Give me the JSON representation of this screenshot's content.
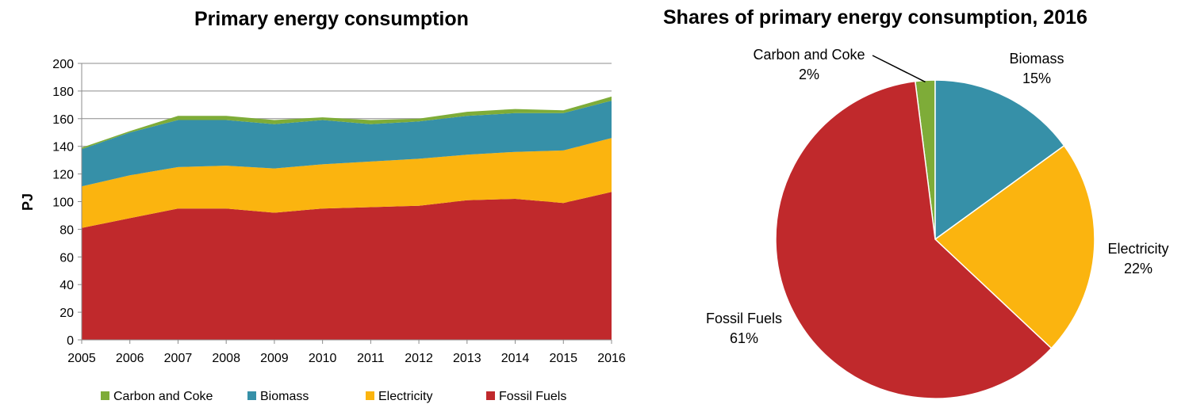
{
  "chart_data": [
    {
      "type": "area",
      "stacked": true,
      "title": "Primary energy consumption",
      "xlabel": "",
      "ylabel": "PJ",
      "ylim": [
        0,
        200
      ],
      "yticks": [
        0,
        20,
        40,
        60,
        80,
        100,
        120,
        140,
        160,
        180,
        200
      ],
      "grid": true,
      "legend_position": "bottom",
      "categories": [
        "2005",
        "2006",
        "2007",
        "2008",
        "2009",
        "2010",
        "2011",
        "2012",
        "2013",
        "2014",
        "2015",
        "2016"
      ],
      "series": [
        {
          "name": "Fossil Fuels",
          "color": "#C0292C",
          "values": [
            81,
            88,
            95,
            95,
            92,
            95,
            96,
            97,
            101,
            102,
            99,
            107
          ]
        },
        {
          "name": "Electricity",
          "color": "#FBB40F",
          "values": [
            30,
            31,
            30,
            31,
            32,
            32,
            33,
            34,
            33,
            34,
            38,
            39
          ]
        },
        {
          "name": "Biomass",
          "color": "#3690A8",
          "values": [
            27,
            31,
            34,
            33,
            32,
            32,
            27,
            27,
            28,
            28,
            27,
            27
          ]
        },
        {
          "name": "Carbon and Coke",
          "color": "#7EAC38",
          "values": [
            1,
            1,
            3,
            3,
            3,
            2,
            3,
            2,
            3,
            3,
            2,
            3
          ]
        }
      ],
      "legend_order": [
        "Carbon and Coke",
        "Biomass",
        "Electricity",
        "Fossil Fuels"
      ]
    },
    {
      "type": "pie",
      "title": "Shares of primary energy consumption, 2016",
      "slices": [
        {
          "label": "Carbon and Coke",
          "pct_text": "2%",
          "value": 2,
          "color": "#7EAC38"
        },
        {
          "label": "Biomass",
          "pct_text": "15%",
          "value": 15,
          "color": "#3690A8"
        },
        {
          "label": "Electricity",
          "pct_text": "22%",
          "value": 22,
          "color": "#FBB40F"
        },
        {
          "label": "Fossil Fuels",
          "pct_text": "61%",
          "value": 61,
          "color": "#C0292C"
        }
      ]
    }
  ]
}
